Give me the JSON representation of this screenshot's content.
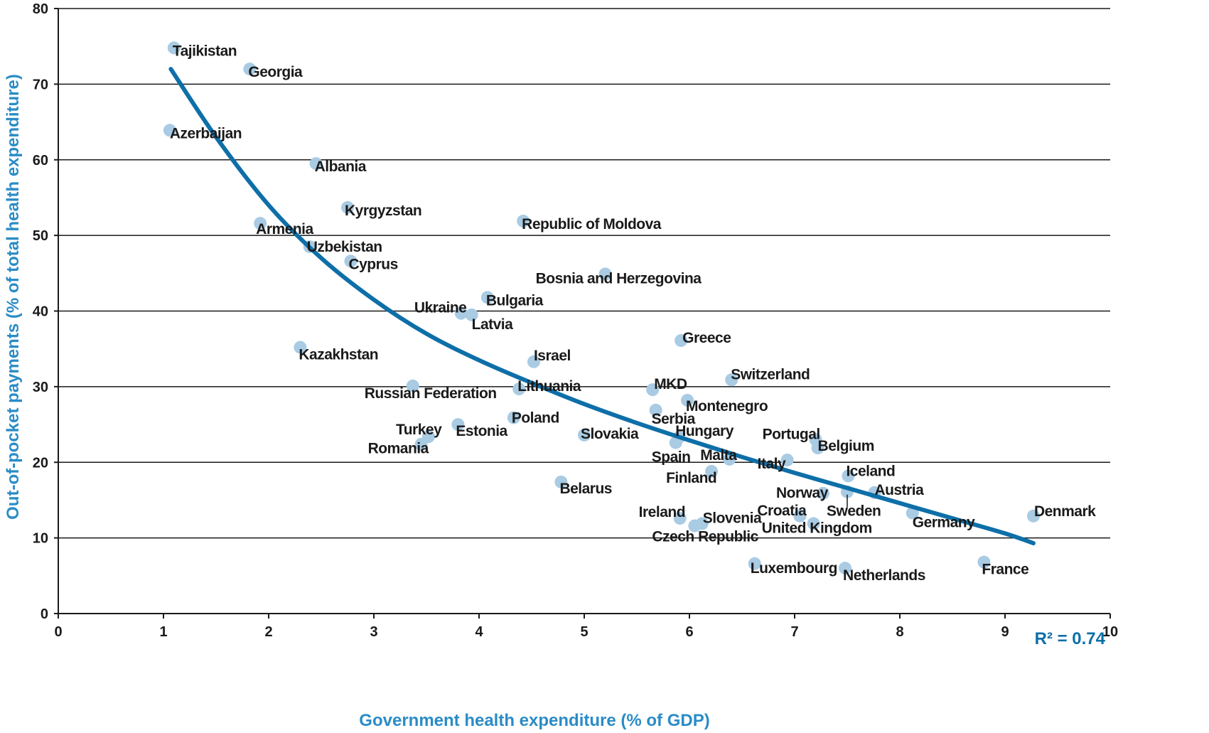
{
  "chart_data": {
    "type": "scatter",
    "title": "",
    "xlabel": "Government health expenditure (% of GDP)",
    "ylabel": "Out-of-pocket payments (% of total health expenditure)",
    "xlim": [
      0,
      10
    ],
    "ylim": [
      0,
      80
    ],
    "x_ticks": [
      0,
      1,
      2,
      3,
      4,
      5,
      6,
      7,
      8,
      9,
      10
    ],
    "y_ticks": [
      0,
      10,
      20,
      30,
      40,
      50,
      60,
      70,
      80
    ],
    "grid": "horizontal",
    "r2_label": "R² = 0.74",
    "colors": {
      "point": "#a9cbe3",
      "trend": "#0e6fa8",
      "axis_title": "#2a8cc6",
      "grid": "#1a1a1a"
    },
    "trend_curve": [
      [
        1.07,
        72.0
      ],
      [
        1.5,
        63.0
      ],
      [
        2.0,
        54.0
      ],
      [
        2.5,
        47.0
      ],
      [
        3.0,
        41.5
      ],
      [
        3.5,
        37.0
      ],
      [
        4.0,
        33.5
      ],
      [
        4.5,
        30.5
      ],
      [
        5.0,
        27.7
      ],
      [
        5.5,
        25.2
      ],
      [
        6.0,
        22.9
      ],
      [
        6.5,
        20.7
      ],
      [
        7.0,
        18.6
      ],
      [
        7.5,
        16.6
      ],
      [
        8.0,
        14.6
      ],
      [
        8.5,
        12.6
      ],
      [
        9.0,
        10.6
      ],
      [
        9.27,
        9.3
      ]
    ],
    "points": [
      {
        "name": "Tajikistan",
        "x": 1.1,
        "y": 74.8
      },
      {
        "name": "Georgia",
        "x": 1.82,
        "y": 72.0
      },
      {
        "name": "Azerbaijan",
        "x": 1.06,
        "y": 63.9
      },
      {
        "name": "Albania",
        "x": 2.45,
        "y": 59.5
      },
      {
        "name": "Kyrgyzstan",
        "x": 2.75,
        "y": 53.7
      },
      {
        "name": "Armenia",
        "x": 1.92,
        "y": 51.6
      },
      {
        "name": "Republic of Moldova",
        "x": 4.42,
        "y": 51.9
      },
      {
        "name": "Uzbekistan",
        "x": 2.39,
        "y": 48.5
      },
      {
        "name": "Cyprus",
        "x": 2.78,
        "y": 46.6
      },
      {
        "name": "Bosnia and Herzegovina",
        "x": 5.2,
        "y": 44.9
      },
      {
        "name": "Bulgaria",
        "x": 4.08,
        "y": 41.8
      },
      {
        "name": "Ukraine",
        "x": 3.83,
        "y": 39.7
      },
      {
        "name": "Latvia",
        "x": 3.93,
        "y": 39.5
      },
      {
        "name": "Greece",
        "x": 5.92,
        "y": 36.1
      },
      {
        "name": "Kazakhstan",
        "x": 2.3,
        "y": 35.2
      },
      {
        "name": "Israel",
        "x": 4.52,
        "y": 33.3
      },
      {
        "name": "Switzerland",
        "x": 6.4,
        "y": 30.9
      },
      {
        "name": "Russian Federation",
        "x": 3.37,
        "y": 30.1
      },
      {
        "name": "Lithuania",
        "x": 4.38,
        "y": 29.7
      },
      {
        "name": "MKD",
        "x": 5.65,
        "y": 29.6
      },
      {
        "name": "Montenegro",
        "x": 5.98,
        "y": 28.2
      },
      {
        "name": "Serbia",
        "x": 5.68,
        "y": 26.9
      },
      {
        "name": "Poland",
        "x": 4.33,
        "y": 25.9
      },
      {
        "name": "Estonia",
        "x": 3.8,
        "y": 25.0
      },
      {
        "name": "Turkey",
        "x": 3.52,
        "y": 23.4
      },
      {
        "name": "Romania",
        "x": 3.45,
        "y": 22.4
      },
      {
        "name": "Slovakia",
        "x": 5.0,
        "y": 23.6
      },
      {
        "name": "Hungary",
        "x": 5.9,
        "y": 23.3
      },
      {
        "name": "Spain",
        "x": 5.87,
        "y": 22.6
      },
      {
        "name": "Portugal",
        "x": 7.2,
        "y": 23.0
      },
      {
        "name": "Belgium",
        "x": 7.22,
        "y": 21.9
      },
      {
        "name": "Malta",
        "x": 6.38,
        "y": 20.4
      },
      {
        "name": "Italy",
        "x": 6.93,
        "y": 20.3
      },
      {
        "name": "Finland",
        "x": 6.21,
        "y": 18.8
      },
      {
        "name": "Iceland",
        "x": 7.51,
        "y": 18.2
      },
      {
        "name": "Belarus",
        "x": 4.78,
        "y": 17.4
      },
      {
        "name": "Norway",
        "x": 7.27,
        "y": 15.9
      },
      {
        "name": "Austria",
        "x": 7.76,
        "y": 16.0
      },
      {
        "name": "Sweden",
        "x": 7.5,
        "y": 16.1
      },
      {
        "name": "Germany",
        "x": 8.12,
        "y": 13.3
      },
      {
        "name": "Denmark",
        "x": 9.27,
        "y": 12.9
      },
      {
        "name": "Croatia",
        "x": 7.05,
        "y": 12.9
      },
      {
        "name": "Slovenia",
        "x": 6.12,
        "y": 11.9
      },
      {
        "name": "Ireland",
        "x": 5.91,
        "y": 12.6
      },
      {
        "name": "Czech Republic",
        "x": 6.05,
        "y": 11.6
      },
      {
        "name": "United Kingdom",
        "x": 7.18,
        "y": 11.9
      },
      {
        "name": "Luxembourg",
        "x": 6.62,
        "y": 6.6
      },
      {
        "name": "Netherlands",
        "x": 7.48,
        "y": 6.0
      },
      {
        "name": "France",
        "x": 8.8,
        "y": 6.8
      }
    ]
  }
}
